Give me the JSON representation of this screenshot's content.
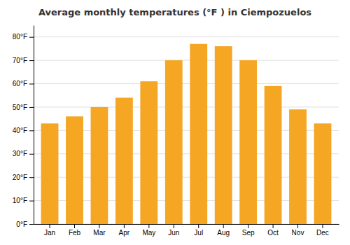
{
  "chart_data": {
    "type": "bar",
    "title": "Average monthly temperatures (°F ) in Ciempozuelos",
    "categories": [
      "Jan",
      "Feb",
      "Mar",
      "Apr",
      "May",
      "Jun",
      "Jul",
      "Aug",
      "Sep",
      "Oct",
      "Nov",
      "Dec"
    ],
    "values": [
      43,
      46,
      50,
      54,
      61,
      70,
      77,
      76,
      70,
      59,
      49,
      43
    ],
    "color": "#F5A623",
    "ylim": [
      0,
      85
    ],
    "yticks": [
      {
        "value": 0,
        "label": "0°F"
      },
      {
        "value": 10,
        "label": "10°F"
      },
      {
        "value": 20,
        "label": "20°F"
      },
      {
        "value": 30,
        "label": "30°F"
      },
      {
        "value": 40,
        "label": "40°F"
      },
      {
        "value": 50,
        "label": "50°F"
      },
      {
        "value": 60,
        "label": "60°F"
      },
      {
        "value": 70,
        "label": "70°F"
      },
      {
        "value": 80,
        "label": "80°F"
      }
    ],
    "grid": true
  }
}
